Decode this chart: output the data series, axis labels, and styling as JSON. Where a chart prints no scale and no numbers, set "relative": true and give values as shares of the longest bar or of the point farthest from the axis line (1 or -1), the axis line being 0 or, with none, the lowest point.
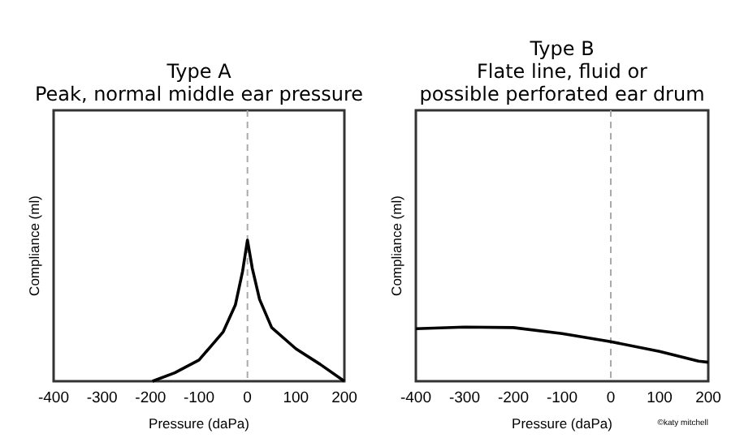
{
  "chart_data": [
    {
      "type": "line",
      "title": "Type A",
      "subtitle": "Peak, normal middle ear pressure",
      "xlabel": "Pressure (daPa)",
      "ylabel": "Compliance (ml)",
      "relative": true,
      "xlim": [
        -400,
        200
      ],
      "xticks": [
        -400,
        -300,
        -200,
        -100,
        0,
        100,
        200
      ],
      "x": [
        -196,
        -150,
        -100,
        -50,
        -25,
        -10,
        0,
        10,
        25,
        50,
        100,
        150,
        200
      ],
      "series": [
        {
          "color": "#000000",
          "values": [
            0,
            0.06,
            0.15,
            0.35,
            0.54,
            0.78,
            1,
            0.8,
            0.58,
            0.38,
            0.23,
            0.12,
            0
          ]
        }
      ],
      "ref_lines": [
        {
          "axis": "x",
          "value": 0,
          "color": "#aaaaaa",
          "line_style": "dashed"
        }
      ]
    },
    {
      "type": "line",
      "title": "Type B",
      "subtitle": "Flate line, fluid or possible perforated ear drum",
      "xlabel": "Pressure (daPa)",
      "ylabel": "Compliance (ml)",
      "relative": true,
      "xlim": [
        -400,
        200
      ],
      "xticks": [
        -400,
        -300,
        -200,
        -100,
        0,
        100,
        200
      ],
      "x": [
        -400,
        -300,
        -200,
        -100,
        0,
        100,
        180,
        200
      ],
      "series": [
        {
          "color": "#000000",
          "values": [
            0.97,
            1,
            0.99,
            0.88,
            0.73,
            0.55,
            0.37,
            0.35
          ]
        }
      ],
      "ref_lines": [
        {
          "axis": "x",
          "value": 0,
          "color": "#aaaaaa",
          "line_style": "dashed"
        }
      ],
      "annotations": [
        "©katy mitchell"
      ]
    }
  ]
}
